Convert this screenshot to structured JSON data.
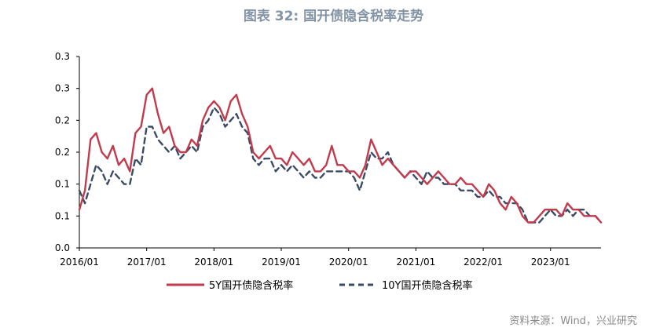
{
  "title": "图表 32: 国开债隐含税率走势",
  "source": "资料来源：Wind，兴业研究",
  "colors": {
    "series_5y": "#c23b4d",
    "series_10y": "#3b4a66",
    "axis": "#000000",
    "title": "#8393a6"
  },
  "chart_data": {
    "type": "line",
    "title": "图表 32: 国开债隐含税率走势",
    "xlabel": "",
    "ylabel": "",
    "grid": false,
    "legend_position": "bottom",
    "x_ticks": [
      "2016/01",
      "2017/01",
      "2018/01",
      "2019/01",
      "2020/01",
      "2021/01",
      "2022/01",
      "2023/01"
    ],
    "y_ticks": [
      "0.0",
      "0.1",
      "0.1",
      "0.2",
      "0.2",
      "0.3",
      "0.3"
    ],
    "y_tick_values": [
      0.0,
      0.05,
      0.1,
      0.15,
      0.2,
      0.25,
      0.3
    ],
    "ylim": [
      0,
      0.3
    ],
    "xlim": [
      "2016/01",
      "2023/10"
    ],
    "series": [
      {
        "name": "5Y国开债隐含税率",
        "style": "solid",
        "x": [
          "2016/01",
          "2016/02",
          "2016/03",
          "2016/04",
          "2016/05",
          "2016/06",
          "2016/07",
          "2016/08",
          "2016/09",
          "2016/10",
          "2016/11",
          "2016/12",
          "2017/01",
          "2017/02",
          "2017/03",
          "2017/04",
          "2017/05",
          "2017/06",
          "2017/07",
          "2017/08",
          "2017/09",
          "2017/10",
          "2017/11",
          "2017/12",
          "2018/01",
          "2018/02",
          "2018/03",
          "2018/04",
          "2018/05",
          "2018/06",
          "2018/07",
          "2018/08",
          "2018/09",
          "2018/10",
          "2018/11",
          "2018/12",
          "2019/01",
          "2019/02",
          "2019/03",
          "2019/04",
          "2019/05",
          "2019/06",
          "2019/07",
          "2019/08",
          "2019/09",
          "2019/10",
          "2019/11",
          "2019/12",
          "2020/01",
          "2020/02",
          "2020/03",
          "2020/04",
          "2020/05",
          "2020/06",
          "2020/07",
          "2020/08",
          "2020/09",
          "2020/10",
          "2020/11",
          "2020/12",
          "2021/01",
          "2021/02",
          "2021/03",
          "2021/04",
          "2021/05",
          "2021/06",
          "2021/07",
          "2021/08",
          "2021/09",
          "2021/10",
          "2021/11",
          "2021/12",
          "2022/01",
          "2022/02",
          "2022/03",
          "2022/04",
          "2022/05",
          "2022/06",
          "2022/07",
          "2022/08",
          "2022/09",
          "2022/10",
          "2022/11",
          "2022/12",
          "2023/01",
          "2023/02",
          "2023/03",
          "2023/04",
          "2023/05",
          "2023/06",
          "2023/07",
          "2023/08",
          "2023/09",
          "2023/10"
        ],
        "values": [
          0.06,
          0.09,
          0.17,
          0.18,
          0.15,
          0.14,
          0.16,
          0.13,
          0.14,
          0.12,
          0.18,
          0.19,
          0.24,
          0.25,
          0.21,
          0.18,
          0.19,
          0.16,
          0.15,
          0.15,
          0.17,
          0.16,
          0.2,
          0.22,
          0.23,
          0.22,
          0.2,
          0.23,
          0.24,
          0.21,
          0.19,
          0.15,
          0.14,
          0.15,
          0.16,
          0.14,
          0.14,
          0.13,
          0.15,
          0.14,
          0.13,
          0.14,
          0.12,
          0.12,
          0.13,
          0.16,
          0.13,
          0.13,
          0.12,
          0.12,
          0.11,
          0.13,
          0.17,
          0.15,
          0.13,
          0.14,
          0.13,
          0.12,
          0.11,
          0.12,
          0.12,
          0.11,
          0.1,
          0.11,
          0.12,
          0.11,
          0.1,
          0.1,
          0.11,
          0.1,
          0.1,
          0.09,
          0.08,
          0.1,
          0.09,
          0.07,
          0.06,
          0.08,
          0.07,
          0.05,
          0.04,
          0.04,
          0.05,
          0.06,
          0.06,
          0.06,
          0.05,
          0.07,
          0.06,
          0.06,
          0.05,
          0.05,
          0.05,
          0.04
        ]
      },
      {
        "name": "10Y国开债隐含税率",
        "style": "dashed",
        "x": [
          "2016/01",
          "2016/02",
          "2016/03",
          "2016/04",
          "2016/05",
          "2016/06",
          "2016/07",
          "2016/08",
          "2016/09",
          "2016/10",
          "2016/11",
          "2016/12",
          "2017/01",
          "2017/02",
          "2017/03",
          "2017/04",
          "2017/05",
          "2017/06",
          "2017/07",
          "2017/08",
          "2017/09",
          "2017/10",
          "2017/11",
          "2017/12",
          "2018/01",
          "2018/02",
          "2018/03",
          "2018/04",
          "2018/05",
          "2018/06",
          "2018/07",
          "2018/08",
          "2018/09",
          "2018/10",
          "2018/11",
          "2018/12",
          "2019/01",
          "2019/02",
          "2019/03",
          "2019/04",
          "2019/05",
          "2019/06",
          "2019/07",
          "2019/08",
          "2019/09",
          "2019/10",
          "2019/11",
          "2019/12",
          "2020/01",
          "2020/02",
          "2020/03",
          "2020/04",
          "2020/05",
          "2020/06",
          "2020/07",
          "2020/08",
          "2020/09",
          "2020/10",
          "2020/11",
          "2020/12",
          "2021/01",
          "2021/02",
          "2021/03",
          "2021/04",
          "2021/05",
          "2021/06",
          "2021/07",
          "2021/08",
          "2021/09",
          "2021/10",
          "2021/11",
          "2021/12",
          "2022/01",
          "2022/02",
          "2022/03",
          "2022/04",
          "2022/05",
          "2022/06",
          "2022/07",
          "2022/08",
          "2022/09",
          "2022/10",
          "2022/11",
          "2022/12",
          "2023/01",
          "2023/02",
          "2023/03",
          "2023/04",
          "2023/05",
          "2023/06",
          "2023/07",
          "2023/08",
          "2023/09",
          "2023/10"
        ],
        "values": [
          0.09,
          0.07,
          0.1,
          0.13,
          0.12,
          0.1,
          0.12,
          0.11,
          0.1,
          0.1,
          0.14,
          0.13,
          0.19,
          0.19,
          0.17,
          0.16,
          0.15,
          0.16,
          0.14,
          0.15,
          0.16,
          0.15,
          0.19,
          0.2,
          0.22,
          0.21,
          0.19,
          0.2,
          0.21,
          0.19,
          0.18,
          0.14,
          0.13,
          0.14,
          0.14,
          0.12,
          0.13,
          0.12,
          0.13,
          0.12,
          0.11,
          0.12,
          0.11,
          0.11,
          0.12,
          0.12,
          0.12,
          0.12,
          0.12,
          0.11,
          0.09,
          0.12,
          0.15,
          0.14,
          0.14,
          0.15,
          0.13,
          0.12,
          0.11,
          0.12,
          0.11,
          0.1,
          0.12,
          0.11,
          0.11,
          0.1,
          0.1,
          0.1,
          0.09,
          0.09,
          0.09,
          0.08,
          0.08,
          0.09,
          0.08,
          0.08,
          0.07,
          0.07,
          0.07,
          0.06,
          0.04,
          0.04,
          0.04,
          0.05,
          0.06,
          0.05,
          0.05,
          0.06,
          0.05,
          0.06,
          0.06,
          0.05,
          0.05,
          0.04
        ]
      }
    ]
  }
}
